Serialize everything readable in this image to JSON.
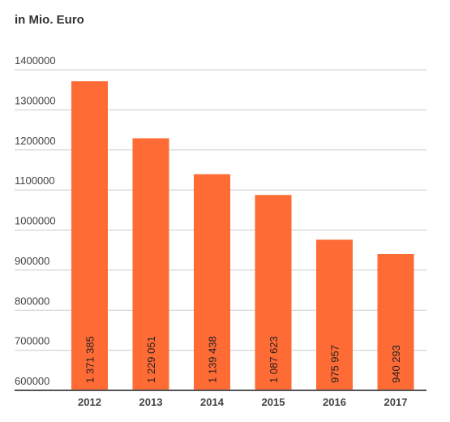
{
  "chart_data": {
    "type": "bar",
    "unit_label": "in Mio. Euro",
    "categories": [
      "2012",
      "2013",
      "2014",
      "2015",
      "2016",
      "2017"
    ],
    "values": [
      1371385,
      1229051,
      1139438,
      1087623,
      975957,
      940293
    ],
    "data_labels": [
      "1 371 385",
      "1 229 051",
      "1 139 438",
      "1 087 623",
      "975 957",
      "940 293"
    ],
    "y_ticks": [
      600000,
      700000,
      800000,
      900000,
      1000000,
      1100000,
      1200000,
      1300000,
      1400000
    ],
    "y_tick_labels": [
      "600000",
      "700000",
      "800000",
      "900000",
      "1000000",
      "1100000",
      "1200000",
      "1300000",
      "1400000"
    ],
    "ylim": [
      600000,
      1400000
    ],
    "grid": true,
    "legend": "none",
    "colors": {
      "bar": "#ff6b35",
      "grid": "#cccccc",
      "axis": "#555555"
    }
  }
}
